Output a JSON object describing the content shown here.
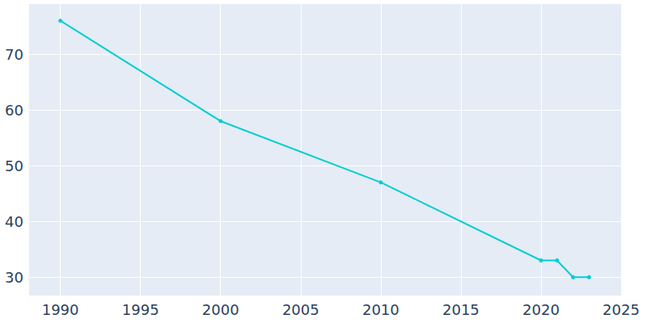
{
  "chart_data": {
    "type": "line",
    "x": [
      1990,
      2000,
      2010,
      2020,
      2021,
      2022,
      2023
    ],
    "values": [
      76,
      58,
      47,
      33,
      33,
      30,
      30
    ],
    "color": "#00ced1",
    "marker": "circle",
    "xlim": [
      1988,
      2025
    ],
    "xticks": [
      1990,
      1995,
      2000,
      2005,
      2010,
      2015,
      2020,
      2025
    ],
    "ylim": [
      26.7,
      79
    ],
    "yticks": [
      30,
      40,
      50,
      60,
      70
    ],
    "grid": true
  }
}
